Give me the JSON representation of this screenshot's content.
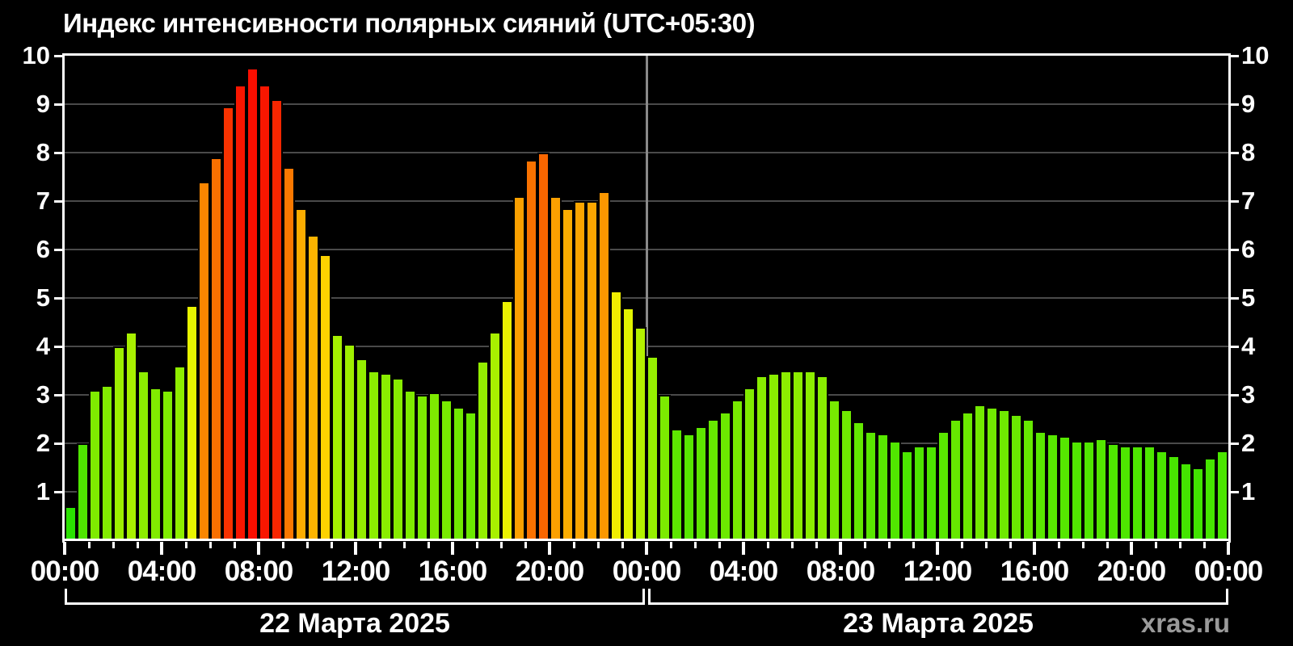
{
  "title": "Индекс интенсивности полярных сияний (UTC+05:30)",
  "watermark": "xras.ru",
  "days": [
    {
      "label": "22 Марта 2025"
    },
    {
      "label": "23 Марта 2025"
    }
  ],
  "y_axis": {
    "min": 0,
    "max": 10,
    "tick_labels": [
      "1",
      "2",
      "3",
      "4",
      "5",
      "6",
      "7",
      "8",
      "9",
      "10"
    ]
  },
  "x_axis": {
    "hour_labels": [
      "00:00",
      "04:00",
      "08:00",
      "12:00",
      "16:00",
      "20:00"
    ],
    "end_label": "00:00"
  },
  "chart_data": {
    "type": "bar",
    "title": "Индекс интенсивности полярных сияний (UTC+05:30)",
    "xlabel": "",
    "ylabel": "",
    "ylim": [
      0,
      10
    ],
    "grid": true,
    "interval_minutes": 30,
    "x_tick_labels": [
      "00:00",
      "04:00",
      "08:00",
      "12:00",
      "16:00",
      "20:00",
      "00:00",
      "04:00",
      "08:00",
      "12:00",
      "16:00",
      "20:00",
      "00:00"
    ],
    "series": [
      {
        "name": "22 Марта 2025",
        "values": [
          0.7,
          2.0,
          3.1,
          3.2,
          4.0,
          4.3,
          3.5,
          3.15,
          3.1,
          3.6,
          4.85,
          7.4,
          7.9,
          8.95,
          9.4,
          9.75,
          9.4,
          9.1,
          7.7,
          6.85,
          6.3,
          5.9,
          4.25,
          4.05,
          3.75,
          3.5,
          3.45,
          3.35,
          3.1,
          3.0,
          3.05,
          2.9,
          2.75,
          2.65,
          3.7,
          4.3,
          4.95,
          7.1,
          7.85,
          8.0,
          7.1,
          6.85,
          7.0,
          7.0,
          7.2,
          5.15,
          4.8,
          4.4
        ]
      },
      {
        "name": "23 Марта 2025",
        "values": [
          3.8,
          3.0,
          2.3,
          2.2,
          2.35,
          2.5,
          2.65,
          2.9,
          3.15,
          3.4,
          3.45,
          3.5,
          3.5,
          3.5,
          3.4,
          2.9,
          2.7,
          2.45,
          2.25,
          2.2,
          2.05,
          1.85,
          1.95,
          1.95,
          2.25,
          2.5,
          2.65,
          2.8,
          2.75,
          2.7,
          2.6,
          2.5,
          2.25,
          2.2,
          2.15,
          2.05,
          2.05,
          2.1,
          2.0,
          1.95,
          1.95,
          1.95,
          1.85,
          1.75,
          1.6,
          1.5,
          1.7,
          1.85
        ]
      }
    ],
    "color_scale": [
      [
        0,
        "#16df00"
      ],
      [
        0.7,
        "#2ae200"
      ],
      [
        2,
        "#4fe600"
      ],
      [
        3,
        "#7cea00"
      ],
      [
        3.6,
        "#8fee00"
      ],
      [
        4.3,
        "#a8f000"
      ],
      [
        4.85,
        "#e8f400"
      ],
      [
        5.15,
        "#f0ee00"
      ],
      [
        5.9,
        "#fcd200"
      ],
      [
        6.3,
        "#fcb400"
      ],
      [
        6.85,
        "#fbac00"
      ],
      [
        7.1,
        "#fba000"
      ],
      [
        7.45,
        "#fb8200"
      ],
      [
        7.9,
        "#f97000"
      ],
      [
        8.0,
        "#f96600"
      ],
      [
        8.95,
        "#f83200"
      ],
      [
        9.1,
        "#f82600"
      ],
      [
        9.4,
        "#f81600"
      ],
      [
        9.75,
        "#fa0e00"
      ],
      [
        10,
        "#fa0a00"
      ]
    ],
    "frame_color": "#ffffff",
    "gridline_color": "#4a4a4a",
    "day_split_color": "#8a8a8a",
    "background_color": "#000000",
    "watermark_color": "#9a9a9a"
  }
}
